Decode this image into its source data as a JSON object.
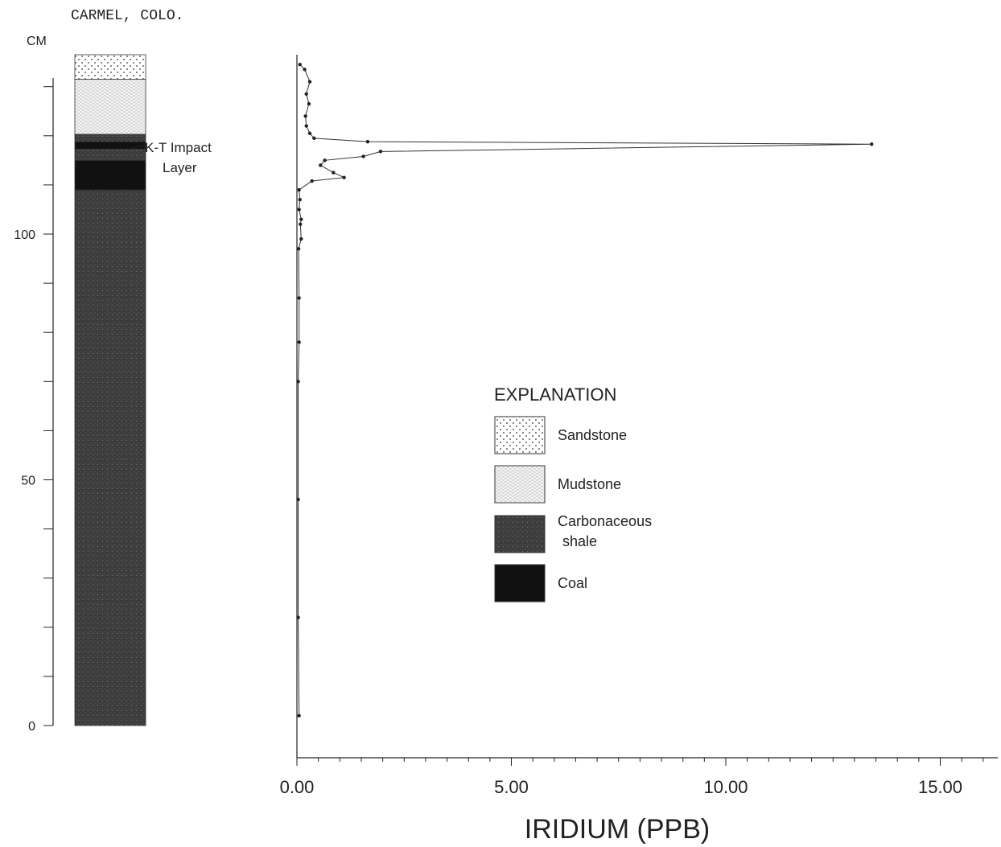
{
  "header": {
    "location": "CARMEL, COLO."
  },
  "depth_axis": {
    "label": "CM",
    "ticks": [
      0,
      50,
      100
    ],
    "range": [
      0,
      135
    ],
    "minor_step": 10
  },
  "annotation": {
    "line1": "K-T Impact",
    "line2": "Layer"
  },
  "column": {
    "units": [
      {
        "lithology": "carbonaceous_shale",
        "from_cm": 0,
        "to_cm": 109
      },
      {
        "lithology": "coal",
        "from_cm": 109,
        "to_cm": 115
      },
      {
        "lithology": "carbonaceous_shale",
        "from_cm": 115,
        "to_cm": 117.3
      },
      {
        "lithology": "coal",
        "from_cm": 117.3,
        "to_cm": 118.8
      },
      {
        "lithology": "carbonaceous_shale",
        "from_cm": 118.8,
        "to_cm": 120.3
      },
      {
        "lithology": "mudstone",
        "from_cm": 120.3,
        "to_cm": 131.5
      },
      {
        "lithology": "sandstone",
        "from_cm": 131.5,
        "to_cm": 136.5
      }
    ]
  },
  "legend": {
    "title": "EXPLANATION",
    "items": [
      {
        "key": "sandstone",
        "lines": [
          "Sandstone"
        ]
      },
      {
        "key": "mudstone",
        "lines": [
          "Mudstone"
        ]
      },
      {
        "key": "carbonaceous_shale",
        "lines": [
          "Carbonaceous",
          "shale"
        ]
      },
      {
        "key": "coal",
        "lines": [
          "Coal"
        ]
      }
    ]
  },
  "chart_data": {
    "type": "line",
    "xlabel": "IRIDIUM (PPB)",
    "ylabel": "CM",
    "xlim": [
      0,
      16.5
    ],
    "ylim": [
      0,
      135
    ],
    "x_ticks": [
      "0.00",
      "5.00",
      "10.00",
      "15.00"
    ],
    "x_minor_step": 0.5,
    "series": [
      {
        "points": [
          {
            "x": 0.05,
            "y": 2
          },
          {
            "x": 0.03,
            "y": 22
          },
          {
            "x": 0.03,
            "y": 46
          },
          {
            "x": 0.03,
            "y": 70
          },
          {
            "x": 0.05,
            "y": 78
          },
          {
            "x": 0.05,
            "y": 87
          },
          {
            "x": 0.04,
            "y": 97
          },
          {
            "x": 0.1,
            "y": 99
          },
          {
            "x": 0.08,
            "y": 102
          },
          {
            "x": 0.1,
            "y": 103
          },
          {
            "x": 0.05,
            "y": 105
          },
          {
            "x": 0.07,
            "y": 107
          },
          {
            "x": 0.05,
            "y": 109
          },
          {
            "x": 0.35,
            "y": 110.8
          },
          {
            "x": 1.1,
            "y": 111.5
          },
          {
            "x": 0.85,
            "y": 112.5
          },
          {
            "x": 0.55,
            "y": 114
          },
          {
            "x": 0.65,
            "y": 115
          },
          {
            "x": 1.55,
            "y": 115.8
          },
          {
            "x": 1.95,
            "y": 116.8
          },
          {
            "x": 13.4,
            "y": 118.3
          },
          {
            "x": 1.65,
            "y": 118.8
          },
          {
            "x": 0.4,
            "y": 119.5
          },
          {
            "x": 0.3,
            "y": 120.5
          },
          {
            "x": 0.22,
            "y": 122
          },
          {
            "x": 0.2,
            "y": 124
          },
          {
            "x": 0.28,
            "y": 126.5
          },
          {
            "x": 0.22,
            "y": 128.5
          },
          {
            "x": 0.3,
            "y": 131
          },
          {
            "x": 0.18,
            "y": 133.5
          },
          {
            "x": 0.07,
            "y": 134.5
          }
        ]
      }
    ]
  }
}
